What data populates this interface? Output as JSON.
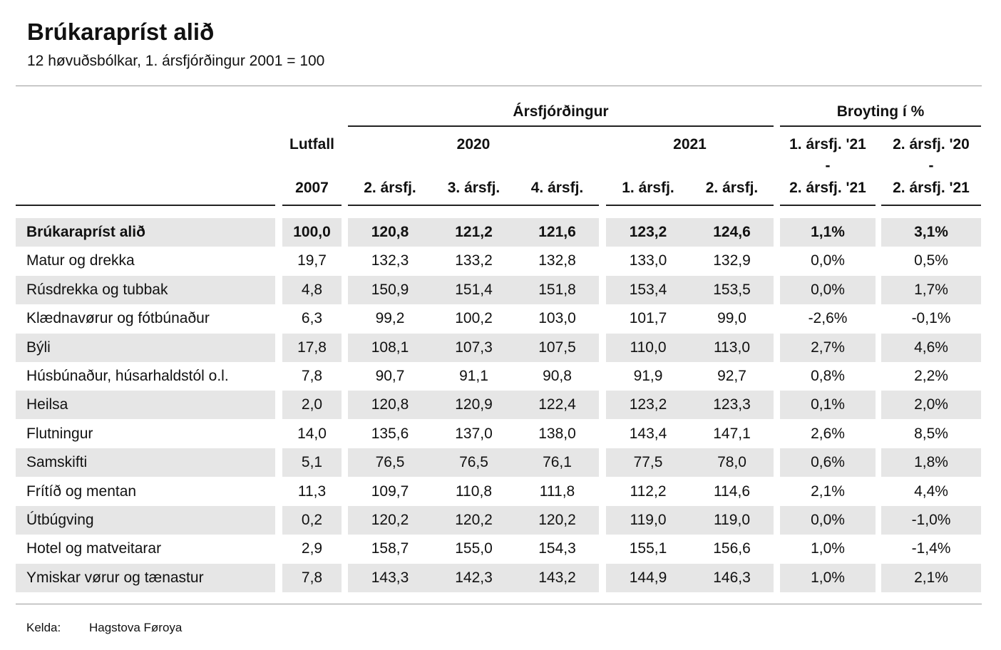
{
  "title": "Brúkarapríst alið",
  "subtitle": "12 høvuðsbólkar, 1. ársfjórðingur 2001 = 100",
  "header": {
    "quarter_group": "Ársfjórðingur",
    "change_group": "Broyting í %",
    "lutfall": "Lutfall",
    "lutfall_year": "2007",
    "year_2020": "2020",
    "year_2021": "2021",
    "q2_2020": "2. ársfj.",
    "q3_2020": "3. ársfj.",
    "q4_2020": "4. ársfj.",
    "q1_2021": "1. ársfj.",
    "q2_2021": "2. ársfj.",
    "change1_top": "1. ársfj. '21",
    "change1_dash": "-",
    "change1_bottom": "2. ársfj. '21",
    "change2_top": "2. ársfj. '20",
    "change2_dash": "-",
    "change2_bottom": "2. ársfj. '21"
  },
  "rows": [
    {
      "label": "Brúkarapríst alið",
      "lutfall": "100,0",
      "q2_20": "120,8",
      "q3_20": "121,2",
      "q4_20": "121,6",
      "q1_21": "123,2",
      "q2_21": "124,6",
      "ch1": "1,1%",
      "ch2": "3,1%"
    },
    {
      "label": "Matur og drekka",
      "lutfall": "19,7",
      "q2_20": "132,3",
      "q3_20": "133,2",
      "q4_20": "132,8",
      "q1_21": "133,0",
      "q2_21": "132,9",
      "ch1": "0,0%",
      "ch2": "0,5%"
    },
    {
      "label": "Rúsdrekka og tubbak",
      "lutfall": "4,8",
      "q2_20": "150,9",
      "q3_20": "151,4",
      "q4_20": "151,8",
      "q1_21": "153,4",
      "q2_21": "153,5",
      "ch1": "0,0%",
      "ch2": "1,7%"
    },
    {
      "label": "Klædnavørur og fótbúnaður",
      "lutfall": "6,3",
      "q2_20": "99,2",
      "q3_20": "100,2",
      "q4_20": "103,0",
      "q1_21": "101,7",
      "q2_21": "99,0",
      "ch1": "-2,6%",
      "ch2": "-0,1%"
    },
    {
      "label": "Býli",
      "lutfall": "17,8",
      "q2_20": "108,1",
      "q3_20": "107,3",
      "q4_20": "107,5",
      "q1_21": "110,0",
      "q2_21": "113,0",
      "ch1": "2,7%",
      "ch2": "4,6%"
    },
    {
      "label": "Húsbúnaður, húsarhaldstól o.l.",
      "lutfall": "7,8",
      "q2_20": "90,7",
      "q3_20": "91,1",
      "q4_20": "90,8",
      "q1_21": "91,9",
      "q2_21": "92,7",
      "ch1": "0,8%",
      "ch2": "2,2%"
    },
    {
      "label": "Heilsa",
      "lutfall": "2,0",
      "q2_20": "120,8",
      "q3_20": "120,9",
      "q4_20": "122,4",
      "q1_21": "123,2",
      "q2_21": "123,3",
      "ch1": "0,1%",
      "ch2": "2,0%"
    },
    {
      "label": "Flutningur",
      "lutfall": "14,0",
      "q2_20": "135,6",
      "q3_20": "137,0",
      "q4_20": "138,0",
      "q1_21": "143,4",
      "q2_21": "147,1",
      "ch1": "2,6%",
      "ch2": "8,5%"
    },
    {
      "label": "Samskifti",
      "lutfall": "5,1",
      "q2_20": "76,5",
      "q3_20": "76,5",
      "q4_20": "76,1",
      "q1_21": "77,5",
      "q2_21": "78,0",
      "ch1": "0,6%",
      "ch2": "1,8%"
    },
    {
      "label": "Frítíð og mentan",
      "lutfall": "11,3",
      "q2_20": "109,7",
      "q3_20": "110,8",
      "q4_20": "111,8",
      "q1_21": "112,2",
      "q2_21": "114,6",
      "ch1": "2,1%",
      "ch2": "4,4%"
    },
    {
      "label": "Útbúgving",
      "lutfall": "0,2",
      "q2_20": "120,2",
      "q3_20": "120,2",
      "q4_20": "120,2",
      "q1_21": "119,0",
      "q2_21": "119,0",
      "ch1": "0,0%",
      "ch2": "-1,0%"
    },
    {
      "label": "Hotel og matveitarar",
      "lutfall": "2,9",
      "q2_20": "158,7",
      "q3_20": "155,0",
      "q4_20": "154,3",
      "q1_21": "155,1",
      "q2_21": "156,6",
      "ch1": "1,0%",
      "ch2": "-1,4%"
    },
    {
      "label": "Ymiskar vørur og tænastur",
      "lutfall": "7,8",
      "q2_20": "143,3",
      "q3_20": "142,3",
      "q4_20": "143,2",
      "q1_21": "144,9",
      "q2_21": "146,3",
      "ch1": "1,0%",
      "ch2": "2,1%"
    }
  ],
  "footer": {
    "source_label": "Kelda:",
    "source_value": "Hagstova Føroya"
  }
}
